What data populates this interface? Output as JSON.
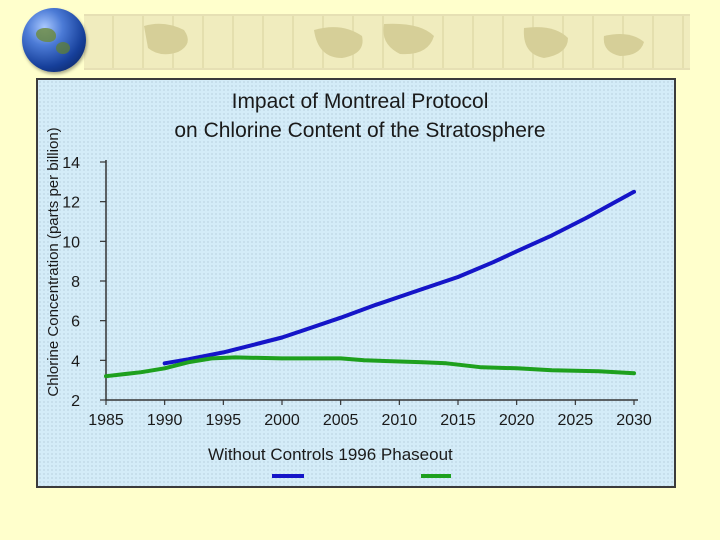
{
  "chart_data": {
    "type": "line",
    "title_lines": [
      "Impact of Montreal Protocol",
      "on Chlorine Content of the Stratosphere"
    ],
    "ylabel": "Chlorine Concentration (parts per billion)",
    "xlabel": "",
    "xlim": [
      1985,
      2030
    ],
    "ylim": [
      2,
      14
    ],
    "x_ticks": [
      1985,
      1990,
      1995,
      2000,
      2005,
      2010,
      2015,
      2020,
      2025,
      2030
    ],
    "y_ticks": [
      2,
      4,
      6,
      8,
      10,
      12,
      14
    ],
    "legend_text": "Without Controls 1996 Phaseout",
    "legend_position": "bottom",
    "series": [
      {
        "name": "Without Controls",
        "color": "#1515c8",
        "x": [
          1990,
          1992,
          1995,
          1998,
          2000,
          2002,
          2005,
          2008,
          2010,
          2012,
          2015,
          2018,
          2020,
          2023,
          2026,
          2028,
          2030
        ],
        "y": [
          3.85,
          4.05,
          4.4,
          4.85,
          5.15,
          5.55,
          6.15,
          6.8,
          7.2,
          7.6,
          8.2,
          8.95,
          9.5,
          10.3,
          11.2,
          11.85,
          12.5
        ]
      },
      {
        "name": "1996 Phaseout",
        "color": "#1ea01e",
        "x": [
          1985,
          1988,
          1990,
          1992,
          1994,
          1996,
          2000,
          2005,
          2007,
          2012,
          2014,
          2017,
          2020,
          2023,
          2027,
          2030
        ],
        "y": [
          3.2,
          3.4,
          3.6,
          3.9,
          4.1,
          4.15,
          4.1,
          4.1,
          4.0,
          3.9,
          3.85,
          3.65,
          3.6,
          3.5,
          3.45,
          3.35
        ]
      }
    ]
  }
}
